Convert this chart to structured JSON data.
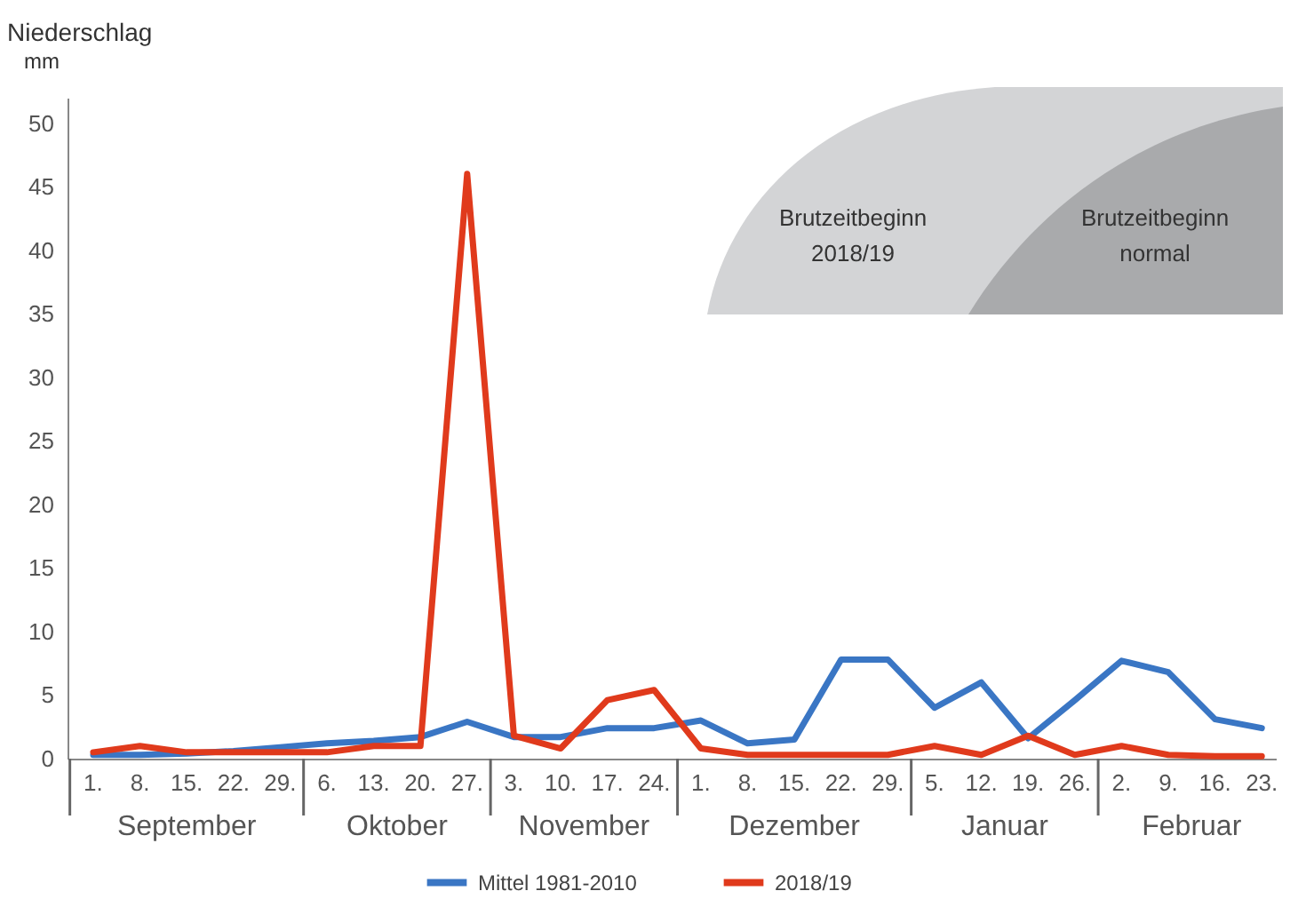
{
  "chart_data": {
    "type": "line",
    "title": "Niederschlag",
    "ylabel": "mm",
    "categories": [
      "1.",
      "8.",
      "15.",
      "22.",
      "29.",
      "6.",
      "13.",
      "20.",
      "27.",
      "3.",
      "10.",
      "17.",
      "24.",
      "1.",
      "8.",
      "15.",
      "22.",
      "29.",
      "5.",
      "12.",
      "19.",
      "26.",
      "2.",
      "9.",
      "16.",
      "23."
    ],
    "series": [
      {
        "name": "Mittel 1981-2010",
        "color": "#3a76c4",
        "values": [
          0.3,
          0.3,
          0.4,
          0.6,
          0.9,
          1.2,
          1.4,
          1.7,
          2.9,
          1.7,
          1.7,
          2.4,
          2.4,
          3.0,
          1.2,
          1.5,
          7.8,
          7.8,
          4.0,
          6.0,
          1.6,
          4.6,
          7.7,
          6.8,
          3.1,
          2.4
        ]
      },
      {
        "name": "2018/19",
        "color": "#e03a1c",
        "values": [
          0.5,
          1.0,
          0.5,
          0.5,
          0.5,
          0.5,
          1.0,
          1.0,
          46,
          1.8,
          0.8,
          4.6,
          5.4,
          0.8,
          0.3,
          0.3,
          0.3,
          0.3,
          1.0,
          0.3,
          1.8,
          0.3,
          1.0,
          0.3,
          0.2,
          0.2
        ]
      }
    ],
    "ylim": [
      0,
      52
    ],
    "yticks": [
      0,
      5,
      10,
      15,
      20,
      25,
      30,
      35,
      40,
      45,
      50
    ],
    "grid": false,
    "legend": "bottom",
    "marker": "none",
    "line_style": "solid",
    "annotations": [
      "Brutzeitbeginn 2018/19",
      "Brutzeitbeginn normal",
      "September",
      "Oktober",
      "November",
      "Dezember",
      "Januar",
      "Februar"
    ]
  }
}
